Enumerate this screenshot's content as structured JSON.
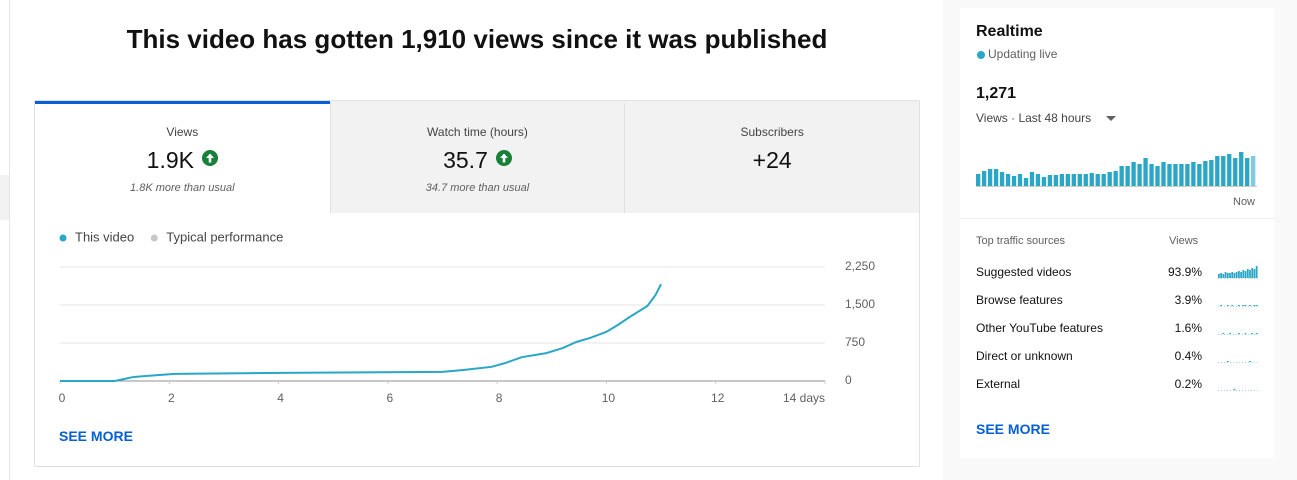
{
  "header": {
    "title": "This video has gotten 1,910 views since it was published"
  },
  "tabs": [
    {
      "label": "Views",
      "value": "1.9K",
      "note": "1.8K more than usual",
      "trend": "up",
      "selected": true
    },
    {
      "label": "Watch time (hours)",
      "value": "35.7",
      "note": "34.7 more than usual",
      "trend": "up",
      "selected": false
    },
    {
      "label": "Subscribers",
      "value": "+24",
      "selected": false
    }
  ],
  "chart_data": {
    "type": "line",
    "series": [
      {
        "name": "This video",
        "color": "#2aa6c7",
        "x": [
          0,
          1,
          1.35,
          1.6,
          2.1,
          4,
          7,
          7.4,
          7.9,
          8.15,
          8.45,
          8.9,
          9.2,
          9.45,
          9.7,
          10,
          10.2,
          10.45,
          10.75,
          10.9,
          11
        ],
        "values": [
          0,
          0,
          80,
          100,
          140,
          160,
          180,
          220,
          280,
          355,
          470,
          550,
          650,
          770,
          850,
          970,
          1100,
          1280,
          1480,
          1700,
          1910
        ]
      }
    ],
    "reference_series": {
      "name": "Typical performance",
      "color": "#c8c8c8"
    },
    "xlim": [
      0,
      14
    ],
    "xticks": [
      0,
      2,
      4,
      6,
      8,
      10,
      12,
      {
        "value": 14,
        "label": "14 days"
      }
    ],
    "ylim": [
      0,
      2250
    ],
    "yticks": [
      0,
      {
        "value": 750,
        "label": "750"
      },
      {
        "value": 1500,
        "label": "1,500"
      },
      {
        "value": 2250,
        "label": "2,250"
      }
    ],
    "grid": true,
    "y_axis_side": "right"
  },
  "see_more": "SEE MORE",
  "realtime": {
    "title": "Realtime",
    "status": "Updating live",
    "total": "1,271",
    "period": "Views · Last 48 hours",
    "now_label": "Now",
    "chart_data": {
      "type": "bar",
      "color": "#2aa6c7",
      "values": [
        12,
        15,
        17,
        17,
        14,
        12,
        10,
        12,
        8,
        14,
        12,
        9,
        11,
        11,
        12,
        12,
        12,
        12,
        12,
        13,
        12,
        12,
        14,
        15,
        20,
        20,
        24,
        22,
        28,
        22,
        20,
        24,
        22,
        22,
        22,
        22,
        24,
        22,
        25,
        26,
        30,
        30,
        32,
        28,
        34,
        28,
        30
      ]
    },
    "traffic": {
      "header": "Top traffic sources",
      "views_header": "Views",
      "rows": [
        {
          "label": "Suggested videos",
          "value": "93.9%",
          "spark": [
            4,
            5,
            4,
            6,
            5,
            5,
            6,
            5,
            6,
            7,
            6,
            8,
            7,
            9,
            8,
            10,
            9,
            12
          ]
        },
        {
          "label": "Browse features",
          "value": "3.9%",
          "spark": [
            0,
            1,
            0,
            0,
            1,
            0,
            1,
            0,
            0,
            1,
            0,
            1,
            1,
            0,
            1,
            0,
            1,
            1
          ]
        },
        {
          "label": "Other YouTube features",
          "value": "1.6%",
          "spark": [
            0,
            0,
            1,
            0,
            0,
            1,
            0,
            0,
            0,
            1,
            0,
            0,
            1,
            0,
            0,
            1,
            0,
            1
          ]
        },
        {
          "label": "Direct or unknown",
          "value": "0.4%",
          "spark": [
            0,
            0,
            0,
            0,
            1,
            0,
            0,
            0,
            0,
            0,
            0,
            0,
            0,
            0,
            1,
            0,
            0,
            0
          ]
        },
        {
          "label": "External",
          "value": "0.2%",
          "spark": [
            0,
            0,
            0,
            0,
            0,
            0,
            0,
            1,
            0,
            0,
            0,
            0,
            0,
            0,
            0,
            0,
            0,
            0
          ]
        }
      ]
    },
    "see_more": "SEE MORE"
  }
}
